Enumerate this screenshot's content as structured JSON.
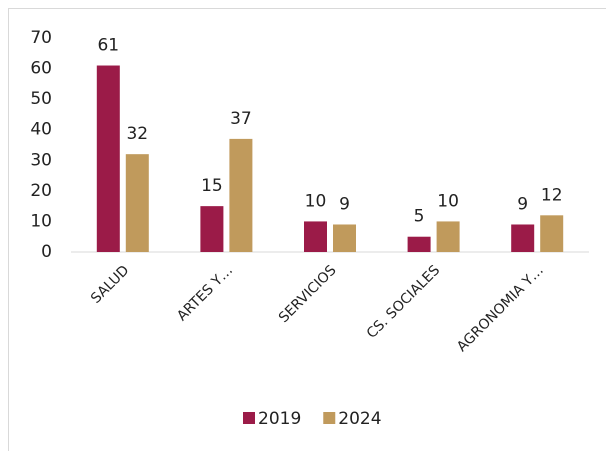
{
  "chart_data": {
    "type": "bar",
    "categories": [
      "SALUD",
      "ARTES Y…",
      "SERVICIOS",
      "CS. SOCIALES",
      "AGRONOMIA Y…"
    ],
    "series": [
      {
        "name": "2019",
        "color": "#9b1b48",
        "values": [
          61,
          15,
          10,
          5,
          9
        ]
      },
      {
        "name": "2024",
        "color": "#c09a5c",
        "values": [
          32,
          37,
          9,
          10,
          12
        ]
      }
    ],
    "ylim": [
      0,
      70
    ],
    "yticks": [
      0,
      10,
      20,
      30,
      40,
      50,
      60,
      70
    ],
    "grid": false,
    "legend": "bottom"
  }
}
